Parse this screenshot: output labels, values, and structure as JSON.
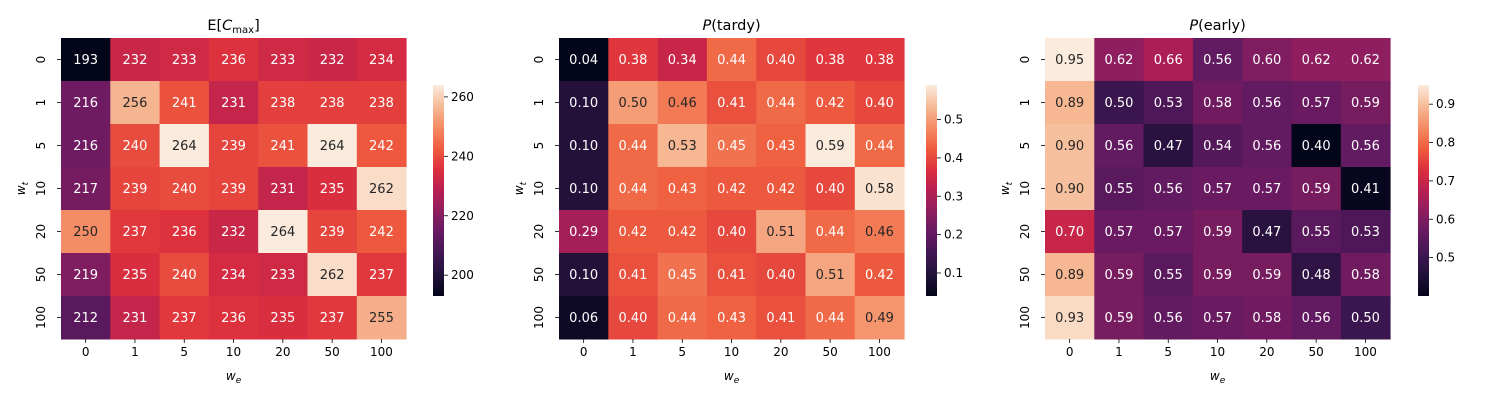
{
  "chart_data": [
    {
      "type": "heatmap",
      "title": "E[C_max]",
      "title_parts": {
        "prefix": "E[",
        "var": "C",
        "sub": "max",
        "suffix": "]"
      },
      "xlabel": "w_e",
      "ylabel": "w_t",
      "x_categories": [
        "0",
        "1",
        "5",
        "10",
        "20",
        "50",
        "100"
      ],
      "y_categories": [
        "0",
        "1",
        "5",
        "10",
        "20",
        "50",
        "100"
      ],
      "values": [
        [
          193,
          232,
          233,
          236,
          233,
          232,
          234
        ],
        [
          216,
          256,
          241,
          231,
          238,
          238,
          238
        ],
        [
          216,
          240,
          264,
          239,
          241,
          264,
          242
        ],
        [
          217,
          239,
          240,
          239,
          231,
          235,
          262
        ],
        [
          250,
          237,
          236,
          232,
          264,
          239,
          242
        ],
        [
          219,
          235,
          240,
          234,
          233,
          262,
          237
        ],
        [
          212,
          231,
          237,
          236,
          235,
          237,
          255
        ]
      ],
      "labels": [
        [
          "193",
          "232",
          "233",
          "236",
          "233",
          "232",
          "234"
        ],
        [
          "216",
          "256",
          "241",
          "231",
          "238",
          "238",
          "238"
        ],
        [
          "216",
          "240",
          "264",
          "239",
          "241",
          "264",
          "242"
        ],
        [
          "217",
          "239",
          "240",
          "239",
          "231",
          "235",
          "262"
        ],
        [
          "250",
          "237",
          "236",
          "232",
          "264",
          "239",
          "242"
        ],
        [
          "219",
          "235",
          "240",
          "234",
          "233",
          "262",
          "237"
        ],
        [
          "212",
          "231",
          "237",
          "236",
          "235",
          "237",
          "255"
        ]
      ],
      "vmin": 193,
      "vmax": 264,
      "colorbar_ticks": [
        200,
        220,
        240,
        260
      ],
      "colorbar_labels": [
        "200",
        "220",
        "240",
        "260"
      ],
      "colormap": "rocket"
    },
    {
      "type": "heatmap",
      "title": "P(tardy)",
      "title_parts": {
        "prefix": "",
        "var": "P",
        "sub": "",
        "suffix": "(tardy)"
      },
      "xlabel": "w_e",
      "ylabel": "w_t",
      "x_categories": [
        "0",
        "1",
        "5",
        "10",
        "20",
        "50",
        "100"
      ],
      "y_categories": [
        "0",
        "1",
        "5",
        "10",
        "20",
        "50",
        "100"
      ],
      "values": [
        [
          0.04,
          0.38,
          0.34,
          0.44,
          0.4,
          0.38,
          0.38
        ],
        [
          0.1,
          0.5,
          0.46,
          0.41,
          0.44,
          0.42,
          0.4
        ],
        [
          0.1,
          0.44,
          0.53,
          0.45,
          0.43,
          0.59,
          0.44
        ],
        [
          0.1,
          0.44,
          0.43,
          0.42,
          0.42,
          0.4,
          0.58
        ],
        [
          0.29,
          0.42,
          0.42,
          0.4,
          0.51,
          0.44,
          0.46
        ],
        [
          0.1,
          0.41,
          0.45,
          0.41,
          0.4,
          0.51,
          0.42
        ],
        [
          0.06,
          0.4,
          0.44,
          0.43,
          0.41,
          0.44,
          0.49
        ]
      ],
      "labels": [
        [
          "0.04",
          "0.38",
          "0.34",
          "0.44",
          "0.40",
          "0.38",
          "0.38"
        ],
        [
          "0.10",
          "0.50",
          "0.46",
          "0.41",
          "0.44",
          "0.42",
          "0.40"
        ],
        [
          "0.10",
          "0.44",
          "0.53",
          "0.45",
          "0.43",
          "0.59",
          "0.44"
        ],
        [
          "0.10",
          "0.44",
          "0.43",
          "0.42",
          "0.42",
          "0.40",
          "0.58"
        ],
        [
          "0.29",
          "0.42",
          "0.42",
          "0.40",
          "0.51",
          "0.44",
          "0.46"
        ],
        [
          "0.10",
          "0.41",
          "0.45",
          "0.41",
          "0.40",
          "0.51",
          "0.42"
        ],
        [
          "0.06",
          "0.40",
          "0.44",
          "0.43",
          "0.41",
          "0.44",
          "0.49"
        ]
      ],
      "vmin": 0.04,
      "vmax": 0.59,
      "colorbar_ticks": [
        0.1,
        0.2,
        0.3,
        0.4,
        0.5
      ],
      "colorbar_labels": [
        "0.1",
        "0.2",
        "0.3",
        "0.4",
        "0.5"
      ],
      "colormap": "rocket"
    },
    {
      "type": "heatmap",
      "title": "P(early)",
      "title_parts": {
        "prefix": "",
        "var": "P",
        "sub": "",
        "suffix": "(early)"
      },
      "xlabel": "w_e",
      "ylabel": "w_t",
      "x_categories": [
        "0",
        "1",
        "5",
        "10",
        "20",
        "50",
        "100"
      ],
      "y_categories": [
        "0",
        "1",
        "5",
        "10",
        "20",
        "50",
        "100"
      ],
      "values": [
        [
          0.95,
          0.62,
          0.66,
          0.56,
          0.6,
          0.62,
          0.62
        ],
        [
          0.89,
          0.5,
          0.53,
          0.58,
          0.56,
          0.57,
          0.59
        ],
        [
          0.9,
          0.56,
          0.47,
          0.54,
          0.56,
          0.4,
          0.56
        ],
        [
          0.9,
          0.55,
          0.56,
          0.57,
          0.57,
          0.59,
          0.41
        ],
        [
          0.7,
          0.57,
          0.57,
          0.59,
          0.47,
          0.55,
          0.53
        ],
        [
          0.89,
          0.59,
          0.55,
          0.59,
          0.59,
          0.48,
          0.58
        ],
        [
          0.93,
          0.59,
          0.56,
          0.57,
          0.58,
          0.56,
          0.5
        ]
      ],
      "labels": [
        [
          "0.95",
          "0.62",
          "0.66",
          "0.56",
          "0.60",
          "0.62",
          "0.62"
        ],
        [
          "0.89",
          "0.50",
          "0.53",
          "0.58",
          "0.56",
          "0.57",
          "0.59"
        ],
        [
          "0.90",
          "0.56",
          "0.47",
          "0.54",
          "0.56",
          "0.40",
          "0.56"
        ],
        [
          "0.90",
          "0.55",
          "0.56",
          "0.57",
          "0.57",
          "0.59",
          "0.41"
        ],
        [
          "0.70",
          "0.57",
          "0.57",
          "0.59",
          "0.47",
          "0.55",
          "0.53"
        ],
        [
          "0.89",
          "0.59",
          "0.55",
          "0.59",
          "0.59",
          "0.48",
          "0.58"
        ],
        [
          "0.93",
          "0.59",
          "0.56",
          "0.57",
          "0.58",
          "0.56",
          "0.50"
        ]
      ],
      "vmin": 0.4,
      "vmax": 0.95,
      "colorbar_ticks": [
        0.5,
        0.6,
        0.7,
        0.8,
        0.9
      ],
      "colorbar_labels": [
        "0.5",
        "0.6",
        "0.7",
        "0.8",
        "0.9"
      ],
      "colormap": "rocket"
    }
  ]
}
